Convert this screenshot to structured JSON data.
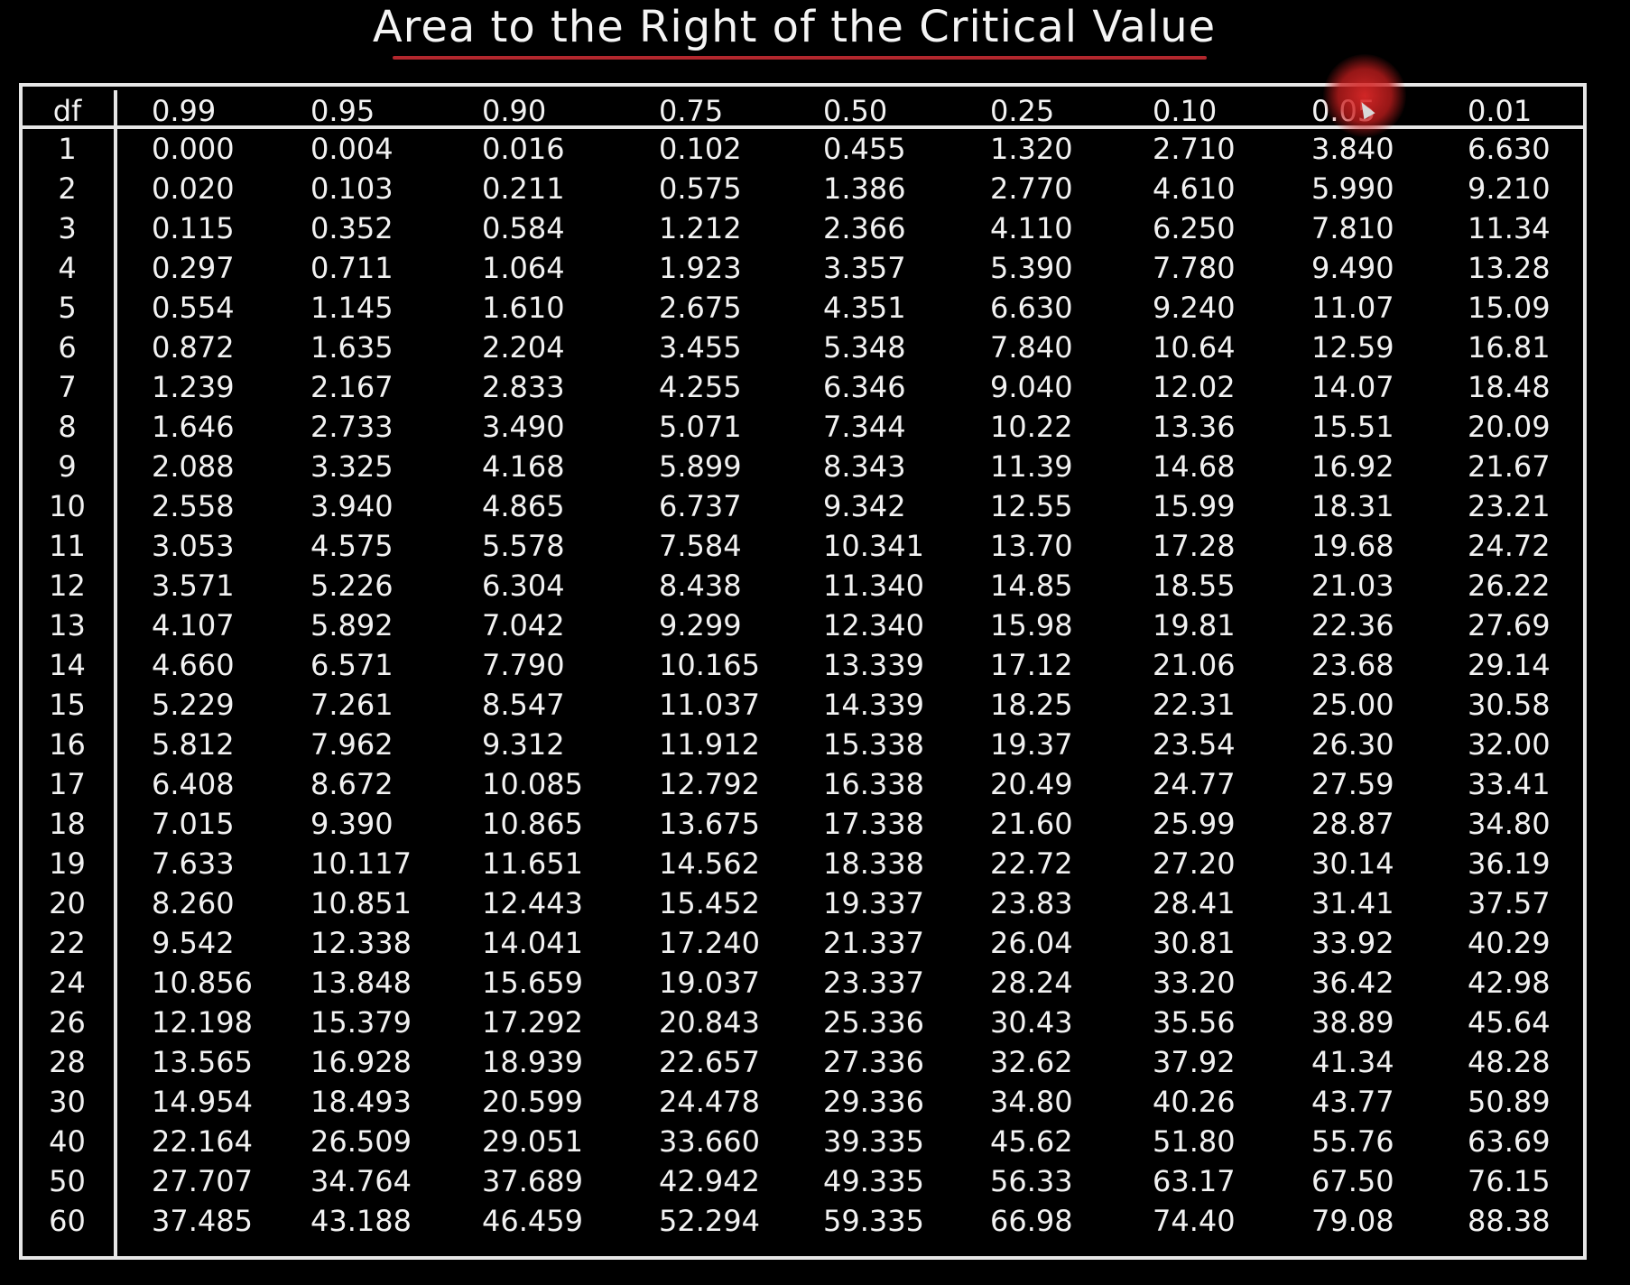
{
  "title": "Area to the Right of the Critical Value",
  "colors": {
    "background": "#000000",
    "text": "#f2f2f2",
    "underline": "#b3272d",
    "cursor_highlight": "#d42a2a"
  },
  "table": {
    "header": [
      "df",
      "0.99",
      "0.95",
      "0.90",
      "0.75",
      "0.50",
      "0.25",
      "0.10",
      "0.05",
      "0.01"
    ],
    "rows": [
      [
        "1",
        "0.000",
        "0.004",
        "0.016",
        "0.102",
        "0.455",
        "1.320",
        "2.710",
        "3.840",
        "6.630"
      ],
      [
        "2",
        "0.020",
        "0.103",
        "0.211",
        "0.575",
        "1.386",
        "2.770",
        "4.610",
        "5.990",
        "9.210"
      ],
      [
        "3",
        "0.115",
        "0.352",
        "0.584",
        "1.212",
        "2.366",
        "4.110",
        "6.250",
        "7.810",
        "11.34"
      ],
      [
        "4",
        "0.297",
        "0.711",
        "1.064",
        "1.923",
        "3.357",
        "5.390",
        "7.780",
        "9.490",
        "13.28"
      ],
      [
        "5",
        "0.554",
        "1.145",
        "1.610",
        "2.675",
        "4.351",
        "6.630",
        "9.240",
        "11.07",
        "15.09"
      ],
      [
        "6",
        "0.872",
        "1.635",
        "2.204",
        "3.455",
        "5.348",
        "7.840",
        "10.64",
        "12.59",
        "16.81"
      ],
      [
        "7",
        "1.239",
        "2.167",
        "2.833",
        "4.255",
        "6.346",
        "9.040",
        "12.02",
        "14.07",
        "18.48"
      ],
      [
        "8",
        "1.646",
        "2.733",
        "3.490",
        "5.071",
        "7.344",
        "10.22",
        "13.36",
        "15.51",
        "20.09"
      ],
      [
        "9",
        "2.088",
        "3.325",
        "4.168",
        "5.899",
        "8.343",
        "11.39",
        "14.68",
        "16.92",
        "21.67"
      ],
      [
        "10",
        "2.558",
        "3.940",
        "4.865",
        "6.737",
        "9.342",
        "12.55",
        "15.99",
        "18.31",
        "23.21"
      ],
      [
        "11",
        "3.053",
        "4.575",
        "5.578",
        "7.584",
        "10.341",
        "13.70",
        "17.28",
        "19.68",
        "24.72"
      ],
      [
        "12",
        "3.571",
        "5.226",
        "6.304",
        "8.438",
        "11.340",
        "14.85",
        "18.55",
        "21.03",
        "26.22"
      ],
      [
        "13",
        "4.107",
        "5.892",
        "7.042",
        "9.299",
        "12.340",
        "15.98",
        "19.81",
        "22.36",
        "27.69"
      ],
      [
        "14",
        "4.660",
        "6.571",
        "7.790",
        "10.165",
        "13.339",
        "17.12",
        "21.06",
        "23.68",
        "29.14"
      ],
      [
        "15",
        "5.229",
        "7.261",
        "8.547",
        "11.037",
        "14.339",
        "18.25",
        "22.31",
        "25.00",
        "30.58"
      ],
      [
        "16",
        "5.812",
        "7.962",
        "9.312",
        "11.912",
        "15.338",
        "19.37",
        "23.54",
        "26.30",
        "32.00"
      ],
      [
        "17",
        "6.408",
        "8.672",
        "10.085",
        "12.792",
        "16.338",
        "20.49",
        "24.77",
        "27.59",
        "33.41"
      ],
      [
        "18",
        "7.015",
        "9.390",
        "10.865",
        "13.675",
        "17.338",
        "21.60",
        "25.99",
        "28.87",
        "34.80"
      ],
      [
        "19",
        "7.633",
        "10.117",
        "11.651",
        "14.562",
        "18.338",
        "22.72",
        "27.20",
        "30.14",
        "36.19"
      ],
      [
        "20",
        "8.260",
        "10.851",
        "12.443",
        "15.452",
        "19.337",
        "23.83",
        "28.41",
        "31.41",
        "37.57"
      ],
      [
        "22",
        "9.542",
        "12.338",
        "14.041",
        "17.240",
        "21.337",
        "26.04",
        "30.81",
        "33.92",
        "40.29"
      ],
      [
        "24",
        "10.856",
        "13.848",
        "15.659",
        "19.037",
        "23.337",
        "28.24",
        "33.20",
        "36.42",
        "42.98"
      ],
      [
        "26",
        "12.198",
        "15.379",
        "17.292",
        "20.843",
        "25.336",
        "30.43",
        "35.56",
        "38.89",
        "45.64"
      ],
      [
        "28",
        "13.565",
        "16.928",
        "18.939",
        "22.657",
        "27.336",
        "32.62",
        "37.92",
        "41.34",
        "48.28"
      ],
      [
        "30",
        "14.954",
        "18.493",
        "20.599",
        "24.478",
        "29.336",
        "34.80",
        "40.26",
        "43.77",
        "50.89"
      ],
      [
        "40",
        "22.164",
        "26.509",
        "29.051",
        "33.660",
        "39.335",
        "45.62",
        "51.80",
        "55.76",
        "63.69"
      ],
      [
        "50",
        "27.707",
        "34.764",
        "37.689",
        "42.942",
        "49.335",
        "56.33",
        "63.17",
        "67.50",
        "76.15"
      ],
      [
        "60",
        "37.485",
        "43.188",
        "46.459",
        "52.294",
        "59.335",
        "66.98",
        "74.40",
        "79.08",
        "88.38"
      ]
    ]
  }
}
